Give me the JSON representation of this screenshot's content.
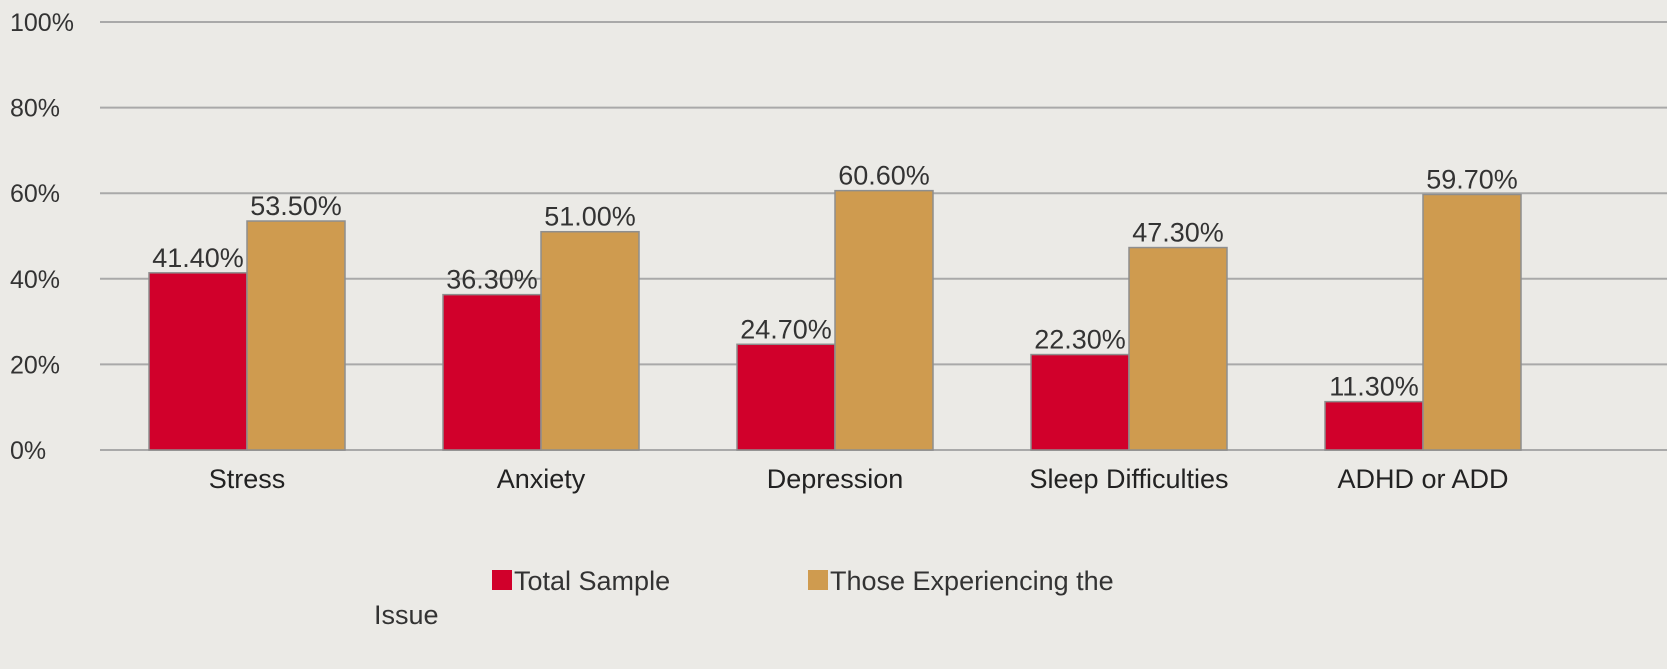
{
  "chart_data": {
    "type": "bar",
    "categories": [
      "Stress",
      "Anxiety",
      "Depression",
      "Sleep Difficulties",
      "ADHD or ADD"
    ],
    "series": [
      {
        "name": "Total Sample",
        "values": [
          41.4,
          36.3,
          24.7,
          22.3,
          11.3
        ],
        "labels": [
          "41.40%",
          "36.30%",
          "24.70%",
          "22.30%",
          "11.30%"
        ],
        "color": "#d1002b"
      },
      {
        "name": "Those Experiencing the Issue",
        "legend_lines": [
          "Those Experiencing the",
          "Issue"
        ],
        "values": [
          53.5,
          51.0,
          60.6,
          47.3,
          59.7
        ],
        "labels": [
          "53.50%",
          "51.00%",
          "60.60%",
          "47.30%",
          "59.70%"
        ],
        "color": "#cf9b4f"
      }
    ],
    "y_ticks": [
      0,
      20,
      40,
      60,
      80,
      100
    ],
    "y_tick_labels": [
      "0%",
      "20%",
      "40%",
      "60%",
      "80%",
      "100%"
    ],
    "ylim": [
      0,
      100
    ],
    "grid": true,
    "legend_position": "bottom",
    "title": "",
    "xlabel": "",
    "ylabel": ""
  },
  "colors": {
    "background": "#ebeae6",
    "gridline": "#a9a9a9",
    "bar_border": "#8e8e8e"
  }
}
